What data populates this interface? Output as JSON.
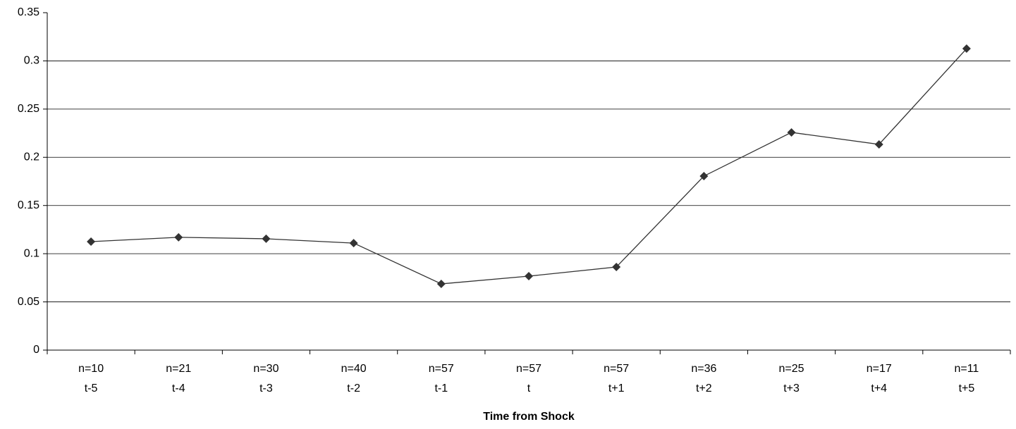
{
  "chart_data": {
    "type": "line",
    "x_label": "Time from Shock",
    "categories": [
      "t-5",
      "t-4",
      "t-3",
      "t-2",
      "t-1",
      "t",
      "t+1",
      "t+2",
      "t+3",
      "t+4",
      "t+5"
    ],
    "category_counts": [
      "n=10",
      "n=21",
      "n=30",
      "n=40",
      "n=57",
      "n=57",
      "n=57",
      "n=36",
      "n=25",
      "n=17",
      "n=11"
    ],
    "values": [
      0.1125,
      0.117,
      0.1155,
      0.111,
      0.0687,
      0.0767,
      0.0862,
      0.1805,
      0.2258,
      0.2134,
      0.3127
    ],
    "color": "#333333",
    "marker": "diamond",
    "ylim": [
      0,
      0.35
    ],
    "yticks": [
      0,
      0.05,
      0.1,
      0.15,
      0.2,
      0.25,
      0.3,
      0.35
    ],
    "grid": true
  }
}
